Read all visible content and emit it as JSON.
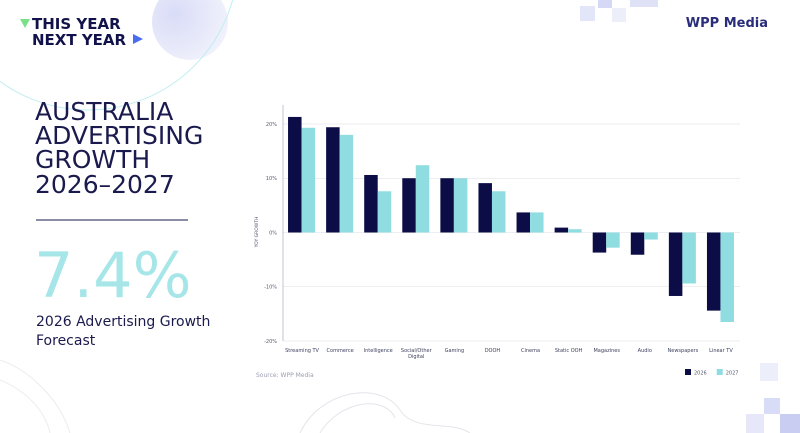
{
  "logo": {
    "line1": "THIS YEAR",
    "line2": "NEXT YEAR"
  },
  "brand": "WPP Media",
  "title_lines": [
    "AUSTRALIA",
    "ADVERTISING",
    "GROWTH",
    "2026–2027"
  ],
  "headline": {
    "stat": "7.4%",
    "caption_lines": [
      "2026 Advertising Growth",
      "Forecast"
    ]
  },
  "source": "Source: WPP Media",
  "chart_data": {
    "type": "bar",
    "y_label": "YOY GROWTH",
    "categories": [
      "Streaming TV",
      "Commerce",
      "Intelligence",
      "Social/Other Digital",
      "Gaming",
      "DOOH",
      "Cinema",
      "Static OOH",
      "Magazines",
      "Audio",
      "Newspapers",
      "Linear TV"
    ],
    "series": [
      {
        "name": "2026",
        "color": "#0c0c47",
        "values": [
          21.3,
          19.4,
          10.6,
          10.0,
          10.0,
          9.1,
          3.7,
          0.9,
          -3.7,
          -4.1,
          -11.7,
          -14.4
        ]
      },
      {
        "name": "2027",
        "color": "#8fdde0",
        "values": [
          19.3,
          18.0,
          7.6,
          12.4,
          10.0,
          7.6,
          3.7,
          0.6,
          -2.8,
          -1.3,
          -9.4,
          -16.5
        ]
      }
    ],
    "ylim": [
      -20,
      23.5
    ],
    "yticks": [
      {
        "value": 20,
        "label": "20%"
      },
      {
        "value": 10,
        "label": "10%"
      },
      {
        "value": 0,
        "label": "0%"
      },
      {
        "value": -10,
        "label": "-10%"
      },
      {
        "value": -20,
        "label": "-20%"
      }
    ],
    "grid": true,
    "legend": "lower right"
  }
}
